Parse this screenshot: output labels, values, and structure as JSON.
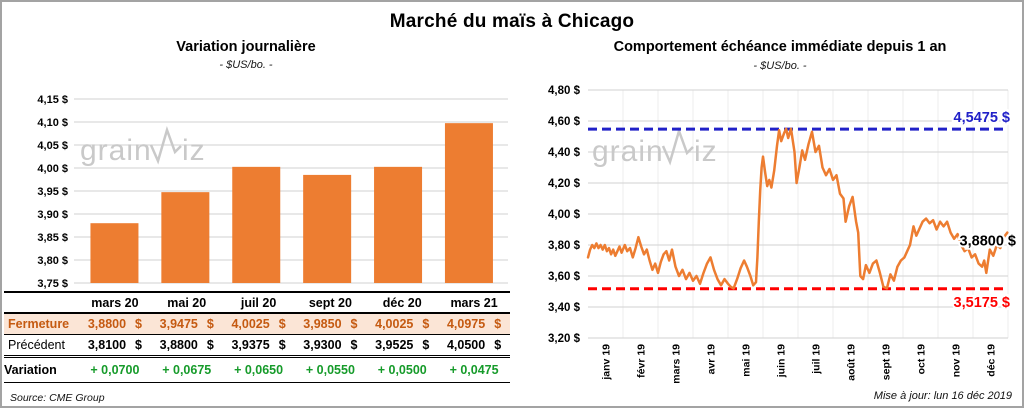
{
  "page": {
    "title": "Marché du maïs à Chicago"
  },
  "watermark": {
    "name": "grainwiz",
    "prefix": "grain",
    "suffix": "iz"
  },
  "left_panel": {
    "title": "Variation journalière",
    "subtitle": "- $US/bo. -",
    "source": "Source: CME Group"
  },
  "right_panel": {
    "title": "Comportement échéance immédiate depuis 1 an",
    "subtitle": "- $US/bo. -",
    "updated": "Mise à jour: lun 16 déc 2019"
  },
  "table": {
    "columns": [
      "mars 20",
      "mai 20",
      "juil 20",
      "sept 20",
      "déc 20",
      "mars 21"
    ],
    "rows": [
      {
        "id": "fermeture",
        "label": "Fermeture",
        "unit": "$",
        "values": [
          "3,8800",
          "3,9475",
          "4,0025",
          "3,9850",
          "4,0025",
          "4,0975"
        ]
      },
      {
        "id": "precedent",
        "label": "Précédent",
        "unit": "$",
        "values": [
          "3,8100",
          "3,8800",
          "3,9375",
          "3,9300",
          "3,9525",
          "4,0500"
        ]
      },
      {
        "id": "variation",
        "label": "Variation",
        "unit": "",
        "values": [
          "+ 0,0700",
          "+ 0,0675",
          "+ 0,0650",
          "+ 0,0550",
          "+ 0,0500",
          "+ 0,0475"
        ]
      }
    ]
  },
  "colors": {
    "accent_orange": "#ED7D31",
    "fermeture_bg": "#FBE5D6",
    "fermeture_text": "#C55A11",
    "variation_green": "#169B2A",
    "resistance_blue": "#2121C8",
    "support_red": "#FF0000",
    "gridline": "#D9D9D9",
    "vgridline": "#ECECEC",
    "watermark": "#C9C9C9"
  },
  "chart_data": [
    {
      "type": "bar",
      "title": "Variation journalière",
      "subtitle": "- $US/bo. -",
      "categories": [
        "mars 20",
        "mai 20",
        "juil 20",
        "sept 20",
        "déc 20",
        "mars 21"
      ],
      "values": [
        3.88,
        3.9475,
        4.0025,
        3.985,
        4.0025,
        4.0975
      ],
      "ylim": [
        3.75,
        4.15
      ],
      "grid": true,
      "yticks": [
        {
          "v": 4.15,
          "label": "4,15 $"
        },
        {
          "v": 4.1,
          "label": "4,10 $"
        },
        {
          "v": 4.05,
          "label": "4,05 $"
        },
        {
          "v": 4.0,
          "label": "4,00 $"
        },
        {
          "v": 3.95,
          "label": "3,95 $"
        },
        {
          "v": 3.9,
          "label": "3,90 $"
        },
        {
          "v": 3.85,
          "label": "3,85 $"
        },
        {
          "v": 3.8,
          "label": "3,80 $"
        },
        {
          "v": 3.75,
          "label": "3,75 $"
        }
      ]
    },
    {
      "type": "line",
      "title": "Comportement échéance immédiate depuis 1 an",
      "subtitle": "- $US/bo. -",
      "ylim": [
        3.2,
        4.8
      ],
      "grid": true,
      "yticks": [
        {
          "v": 4.8,
          "label": "4,80 $"
        },
        {
          "v": 4.6,
          "label": "4,60 $"
        },
        {
          "v": 4.4,
          "label": "4,40 $"
        },
        {
          "v": 4.2,
          "label": "4,20 $"
        },
        {
          "v": 4.0,
          "label": "4,00 $"
        },
        {
          "v": 3.8,
          "label": "3,80 $"
        },
        {
          "v": 3.6,
          "label": "3,60 $"
        },
        {
          "v": 3.4,
          "label": "3,40 $"
        },
        {
          "v": 3.2,
          "label": "3,20 $"
        }
      ],
      "x_labels": [
        "janv 19",
        "févr 19",
        "mars 19",
        "avr 19",
        "mai 19",
        "juin 19",
        "juil 19",
        "août 19",
        "sept 19",
        "oct 19",
        "nov 19",
        "déc 19"
      ],
      "hlines": [
        {
          "id": "resistance",
          "value": 4.5475,
          "label": "4,5475 $"
        },
        {
          "id": "support",
          "value": 3.5175,
          "label": "3,5175 $"
        }
      ],
      "last_point_label": {
        "value": 3.88,
        "label": "3,8800 $"
      },
      "series": [
        {
          "name": "échéance immédiate",
          "points": [
            [
              0,
              3.72
            ],
            [
              0.06,
              3.77
            ],
            [
              0.12,
              3.8
            ],
            [
              0.18,
              3.78
            ],
            [
              0.24,
              3.81
            ],
            [
              0.3,
              3.78
            ],
            [
              0.36,
              3.8
            ],
            [
              0.42,
              3.77
            ],
            [
              0.48,
              3.8
            ],
            [
              0.54,
              3.76
            ],
            [
              0.6,
              3.78
            ],
            [
              0.66,
              3.74
            ],
            [
              0.72,
              3.77
            ],
            [
              0.78,
              3.73
            ],
            [
              0.84,
              3.76
            ],
            [
              0.9,
              3.79
            ],
            [
              0.96,
              3.75
            ],
            [
              1.05,
              3.8
            ],
            [
              1.12,
              3.76
            ],
            [
              1.2,
              3.78
            ],
            [
              1.28,
              3.72
            ],
            [
              1.36,
              3.78
            ],
            [
              1.44,
              3.85
            ],
            [
              1.52,
              3.79
            ],
            [
              1.6,
              3.74
            ],
            [
              1.68,
              3.77
            ],
            [
              1.76,
              3.7
            ],
            [
              1.84,
              3.64
            ],
            [
              1.92,
              3.68
            ],
            [
              2,
              3.62
            ],
            [
              2.08,
              3.69
            ],
            [
              2.16,
              3.74
            ],
            [
              2.24,
              3.76
            ],
            [
              2.32,
              3.7
            ],
            [
              2.4,
              3.77
            ],
            [
              2.5,
              3.66
            ],
            [
              2.6,
              3.6
            ],
            [
              2.7,
              3.64
            ],
            [
              2.8,
              3.58
            ],
            [
              2.9,
              3.62
            ],
            [
              3,
              3.57
            ],
            [
              3.1,
              3.6
            ],
            [
              3.2,
              3.55
            ],
            [
              3.3,
              3.62
            ],
            [
              3.4,
              3.68
            ],
            [
              3.5,
              3.72
            ],
            [
              3.6,
              3.64
            ],
            [
              3.7,
              3.58
            ],
            [
              3.8,
              3.54
            ],
            [
              3.9,
              3.58
            ],
            [
              4,
              3.55
            ],
            [
              4.08,
              3.53
            ],
            [
              4.16,
              3.52
            ],
            [
              4.26,
              3.58
            ],
            [
              4.36,
              3.65
            ],
            [
              4.46,
              3.7
            ],
            [
              4.54,
              3.66
            ],
            [
              4.64,
              3.6
            ],
            [
              4.72,
              3.54
            ],
            [
              4.8,
              3.56
            ],
            [
              4.84,
              3.72
            ],
            [
              4.88,
              3.95
            ],
            [
              4.92,
              4.15
            ],
            [
              4.96,
              4.3
            ],
            [
              5,
              4.37
            ],
            [
              5.06,
              4.27
            ],
            [
              5.12,
              4.18
            ],
            [
              5.18,
              4.22
            ],
            [
              5.24,
              4.17
            ],
            [
              5.32,
              4.28
            ],
            [
              5.4,
              4.44
            ],
            [
              5.46,
              4.54
            ],
            [
              5.52,
              4.47
            ],
            [
              5.6,
              4.52
            ],
            [
              5.66,
              4.55
            ],
            [
              5.72,
              4.49
            ],
            [
              5.8,
              4.55
            ],
            [
              5.9,
              4.4
            ],
            [
              5.96,
              4.2
            ],
            [
              6.04,
              4.3
            ],
            [
              6.12,
              4.41
            ],
            [
              6.2,
              4.35
            ],
            [
              6.3,
              4.45
            ],
            [
              6.4,
              4.53
            ],
            [
              6.5,
              4.4
            ],
            [
              6.6,
              4.44
            ],
            [
              6.7,
              4.3
            ],
            [
              6.8,
              4.25
            ],
            [
              6.9,
              4.29
            ],
            [
              7,
              4.22
            ],
            [
              7.1,
              4.25
            ],
            [
              7.2,
              4.13
            ],
            [
              7.3,
              4.1
            ],
            [
              7.36,
              3.95
            ],
            [
              7.46,
              4.05
            ],
            [
              7.56,
              4.11
            ],
            [
              7.66,
              3.95
            ],
            [
              7.72,
              3.88
            ],
            [
              7.78,
              3.6
            ],
            [
              7.86,
              3.58
            ],
            [
              7.94,
              3.67
            ],
            [
              8.04,
              3.62
            ],
            [
              8.14,
              3.68
            ],
            [
              8.24,
              3.7
            ],
            [
              8.34,
              3.62
            ],
            [
              8.44,
              3.53
            ],
            [
              8.54,
              3.52
            ],
            [
              8.64,
              3.61
            ],
            [
              8.74,
              3.57
            ],
            [
              8.84,
              3.66
            ],
            [
              8.94,
              3.7
            ],
            [
              9.04,
              3.72
            ],
            [
              9.12,
              3.76
            ],
            [
              9.2,
              3.8
            ],
            [
              9.3,
              3.92
            ],
            [
              9.38,
              3.86
            ],
            [
              9.46,
              3.9
            ],
            [
              9.56,
              3.95
            ],
            [
              9.66,
              3.97
            ],
            [
              9.76,
              3.94
            ],
            [
              9.86,
              3.96
            ],
            [
              9.96,
              3.9
            ],
            [
              10.06,
              3.95
            ],
            [
              10.16,
              3.92
            ],
            [
              10.26,
              3.95
            ],
            [
              10.36,
              3.88
            ],
            [
              10.46,
              3.84
            ],
            [
              10.56,
              3.87
            ],
            [
              10.66,
              3.8
            ],
            [
              10.76,
              3.76
            ],
            [
              10.86,
              3.78
            ],
            [
              10.96,
              3.72
            ],
            [
              11.06,
              3.74
            ],
            [
              11.16,
              3.68
            ],
            [
              11.26,
              3.66
            ],
            [
              11.32,
              3.7
            ],
            [
              11.38,
              3.62
            ],
            [
              11.48,
              3.77
            ],
            [
              11.58,
              3.73
            ],
            [
              11.68,
              3.8
            ],
            [
              11.78,
              3.78
            ],
            [
              11.88,
              3.85
            ],
            [
              11.98,
              3.88
            ]
          ]
        }
      ]
    }
  ]
}
